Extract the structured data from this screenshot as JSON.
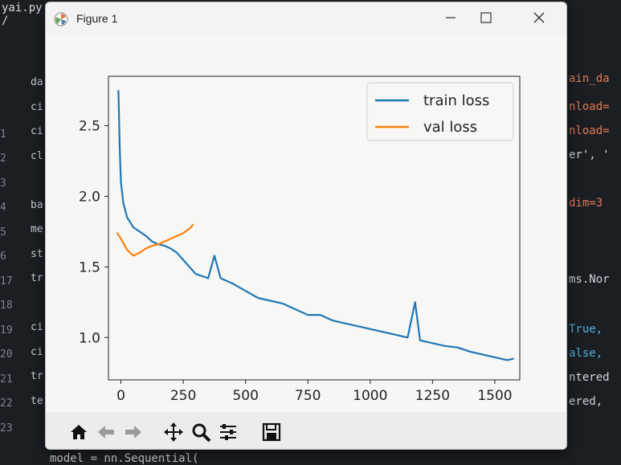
{
  "editor": {
    "file_title": "yai.py /",
    "line_numbers": [
      "",
      "",
      "",
      "1",
      "2",
      "3",
      "4",
      "5",
      "6",
      "17",
      "18",
      "19",
      "20",
      "21",
      "22",
      "23"
    ],
    "left_code": [
      "da",
      "ci",
      "ci",
      "cl",
      "",
      "ba",
      "me",
      "st",
      "tr",
      "",
      "ci",
      "ci",
      "tr",
      "te"
    ],
    "right_code": [
      {
        "text": "ain_da",
        "color": "#e07b53"
      },
      {
        "text": "nload=",
        "color": "#e07b53"
      },
      {
        "text": "nload=",
        "color": "#e07b53"
      },
      {
        "text": "er', '",
        "color": "#d0d4da"
      },
      {
        "text": "dim=3",
        "color": "#e07b53"
      },
      {
        "text": "ms.Nor",
        "color": "#d0d4da"
      },
      {
        "text": "True,",
        "color": "#4fb0e0"
      },
      {
        "text": "alse,",
        "color": "#4fb0e0"
      },
      {
        "text": "ntered",
        "color": "#d0d4da"
      },
      {
        "text": "ered,",
        "color": "#d0d4da"
      }
    ],
    "bottom_code": "model = nn.Sequential("
  },
  "window": {
    "title": "Figure 1",
    "minimize_icon": "minimize-icon",
    "maximize_icon": "maximize-icon",
    "close_icon": "close-icon"
  },
  "toolbar": {
    "tools": [
      "home-icon",
      "back-arrow-icon",
      "forward-arrow-icon",
      "pan-icon",
      "zoom-icon",
      "configure-subplots-icon",
      "save-icon"
    ]
  },
  "chart_data": {
    "type": "line",
    "xlim": [
      -50,
      1600
    ],
    "ylim": [
      0.7,
      2.85
    ],
    "xticks": [
      0,
      250,
      500,
      750,
      1000,
      1250,
      1500
    ],
    "yticks": [
      1.0,
      1.5,
      2.0,
      2.5
    ],
    "xtick_labels": [
      "0",
      "250",
      "500",
      "750",
      "1000",
      "1250",
      "1500"
    ],
    "ytick_labels": [
      "1.0",
      "1.5",
      "2.0",
      "2.5"
    ],
    "title": "",
    "xlabel": "",
    "ylabel": "",
    "legend_position": "top-right",
    "grid": false,
    "series": [
      {
        "name": "train loss",
        "color": "#1f77b4",
        "x": [
          -10,
          -5,
          0,
          10,
          25,
          50,
          75,
          100,
          125,
          150,
          175,
          200,
          225,
          250,
          275,
          300,
          350,
          375,
          400,
          450,
          500,
          550,
          600,
          650,
          700,
          750,
          800,
          850,
          900,
          950,
          1000,
          1050,
          1100,
          1150,
          1180,
          1200,
          1250,
          1300,
          1350,
          1400,
          1450,
          1500,
          1550,
          1575
        ],
        "y": [
          2.75,
          2.35,
          2.1,
          1.95,
          1.85,
          1.78,
          1.75,
          1.72,
          1.68,
          1.66,
          1.65,
          1.63,
          1.6,
          1.55,
          1.5,
          1.45,
          1.42,
          1.58,
          1.42,
          1.38,
          1.33,
          1.28,
          1.26,
          1.24,
          1.2,
          1.16,
          1.16,
          1.12,
          1.1,
          1.08,
          1.06,
          1.04,
          1.02,
          1.0,
          1.25,
          0.98,
          0.96,
          0.94,
          0.93,
          0.9,
          0.88,
          0.86,
          0.84,
          0.85
        ]
      },
      {
        "name": "val loss",
        "color": "#ff7f0e",
        "x": [
          -15,
          0,
          25,
          50,
          75,
          100,
          125,
          150,
          175,
          200,
          225,
          250,
          275,
          290
        ],
        "y": [
          1.74,
          1.7,
          1.62,
          1.58,
          1.6,
          1.63,
          1.65,
          1.66,
          1.68,
          1.7,
          1.72,
          1.74,
          1.77,
          1.8
        ]
      }
    ]
  }
}
